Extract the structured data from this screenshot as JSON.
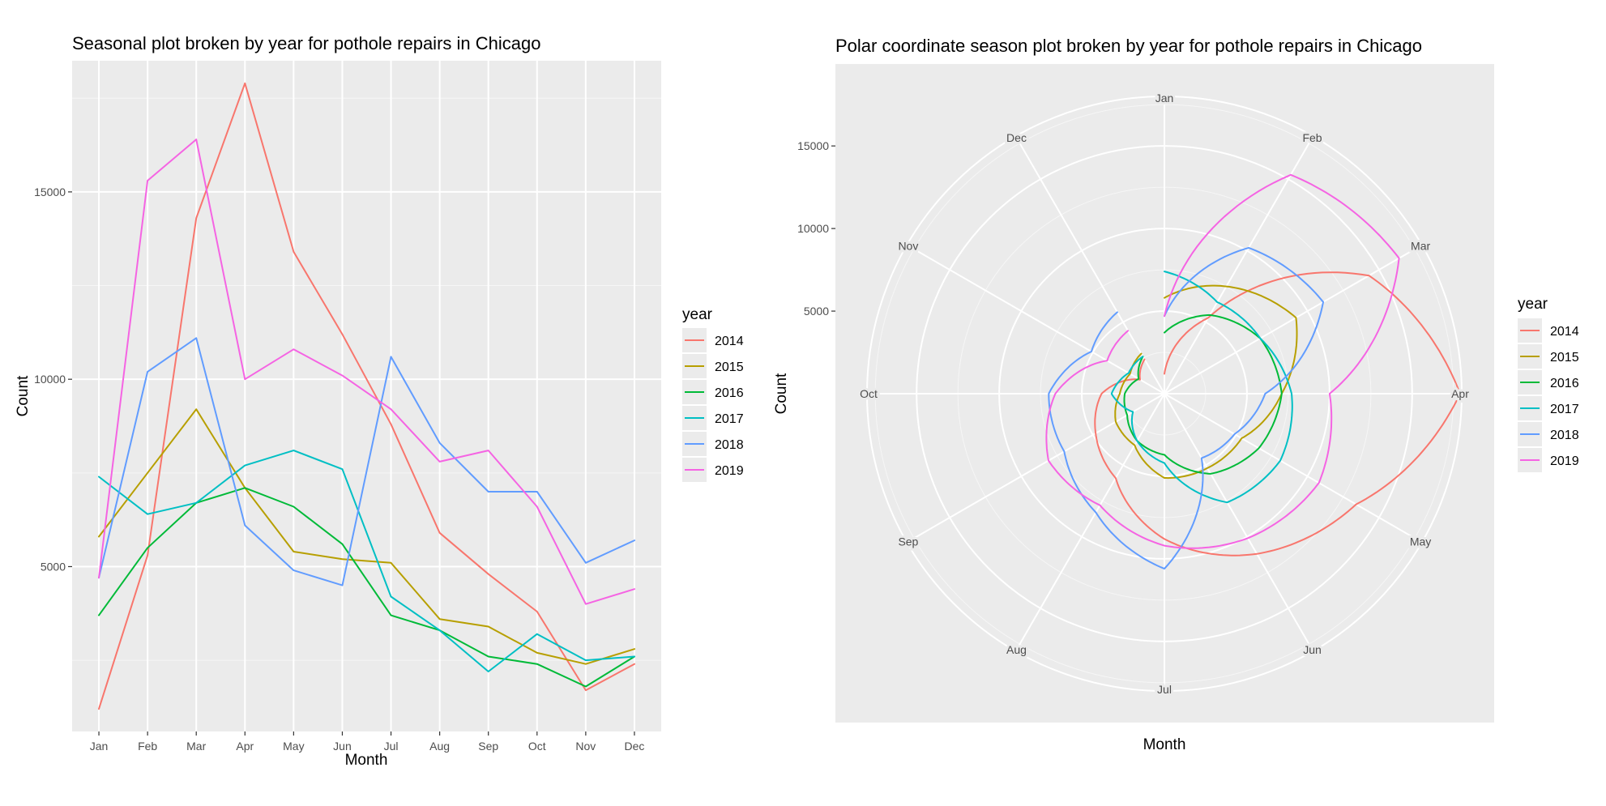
{
  "colors": {
    "panel_bg": "#EBEBEB",
    "grid": "#FFFFFF"
  },
  "chart_data": [
    {
      "type": "line",
      "title": "Seasonal plot broken by year for pothole repairs in Chicago",
      "xlabel": "Month",
      "ylabel": "Count",
      "categories": [
        "Jan",
        "Feb",
        "Mar",
        "Apr",
        "May",
        "Jun",
        "Jul",
        "Aug",
        "Sep",
        "Oct",
        "Nov",
        "Dec"
      ],
      "ylim": [
        600,
        18500
      ],
      "yticks": [
        5000,
        10000,
        15000
      ],
      "grid": true,
      "legend_title": "year",
      "legend_position": "right",
      "series": [
        {
          "name": "2014",
          "color": "#F8766D",
          "values": [
            1200,
            5300,
            14300,
            17900,
            13400,
            11200,
            8800,
            5900,
            4800,
            3800,
            1700,
            2400
          ]
        },
        {
          "name": "2015",
          "color": "#B79F00",
          "values": [
            5800,
            7500,
            9200,
            7100,
            5400,
            5200,
            5100,
            3600,
            3400,
            2700,
            2400,
            2800
          ]
        },
        {
          "name": "2016",
          "color": "#00BA38",
          "values": [
            3700,
            5500,
            6700,
            7100,
            6600,
            5600,
            3700,
            3300,
            2600,
            2400,
            1800,
            2600
          ]
        },
        {
          "name": "2017",
          "color": "#00BFC4",
          "values": [
            7400,
            6400,
            6700,
            7700,
            8100,
            7600,
            4200,
            3300,
            2200,
            3200,
            2500,
            2600
          ]
        },
        {
          "name": "2018",
          "color": "#619CFF",
          "values": [
            4700,
            10200,
            11100,
            6100,
            4900,
            4500,
            10600,
            8300,
            7000,
            7000,
            5100,
            5700
          ]
        },
        {
          "name": "2019",
          "color": "#F564E3",
          "values": [
            4700,
            15300,
            16400,
            10000,
            10800,
            10100,
            9200,
            7800,
            8100,
            6600,
            4000,
            4400
          ]
        }
      ]
    },
    {
      "type": "line",
      "coord": "polar",
      "title": "Polar coordinate season plot broken by year for pothole repairs in Chicago",
      "xlabel": "Month",
      "ylabel": "Count",
      "categories": [
        "Jan",
        "Feb",
        "Mar",
        "Apr",
        "May",
        "Jun",
        "Jul",
        "Aug",
        "Sep",
        "Oct",
        "Nov",
        "Dec"
      ],
      "ylim": [
        0,
        18000
      ],
      "yticks": [
        5000,
        10000,
        15000
      ],
      "grid": true,
      "legend_title": "year",
      "legend_position": "right",
      "series": [
        {
          "name": "2014",
          "color": "#F8766D",
          "values": [
            1200,
            5300,
            14300,
            17900,
            13400,
            11200,
            8800,
            5900,
            4800,
            3800,
            1700,
            2400
          ]
        },
        {
          "name": "2015",
          "color": "#B79F00",
          "values": [
            5800,
            7500,
            9200,
            7100,
            5400,
            5200,
            5100,
            3600,
            3400,
            2700,
            2400,
            2800
          ]
        },
        {
          "name": "2016",
          "color": "#00BA38",
          "values": [
            3700,
            5500,
            6700,
            7100,
            6600,
            5600,
            3700,
            3300,
            2600,
            2400,
            1800,
            2600
          ]
        },
        {
          "name": "2017",
          "color": "#00BFC4",
          "values": [
            7400,
            6400,
            6700,
            7700,
            8100,
            7600,
            4200,
            3300,
            2200,
            3200,
            2500,
            2600
          ]
        },
        {
          "name": "2018",
          "color": "#619CFF",
          "values": [
            4700,
            10200,
            11100,
            6100,
            4900,
            4500,
            10600,
            8300,
            7000,
            7000,
            5100,
            5700
          ]
        },
        {
          "name": "2019",
          "color": "#F564E3",
          "values": [
            4700,
            15300,
            16400,
            10000,
            10800,
            10100,
            9200,
            7800,
            8100,
            6600,
            4000,
            4400
          ]
        }
      ]
    }
  ]
}
